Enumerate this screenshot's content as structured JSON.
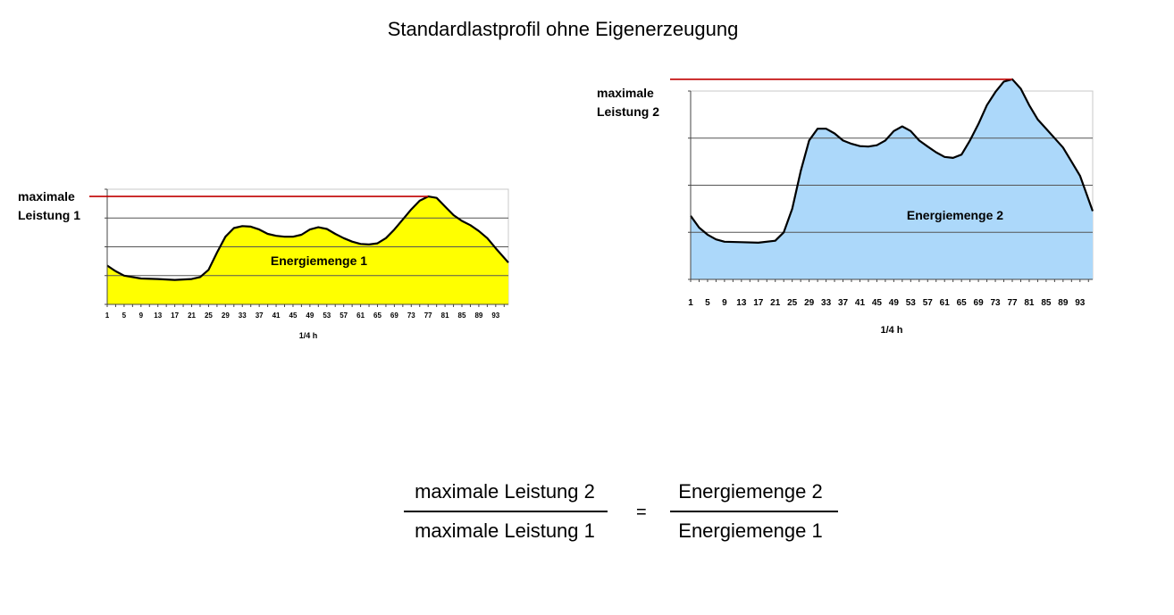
{
  "title": "Standardlastprofil ohne Eigenerzeugung",
  "chart_data": [
    {
      "type": "area",
      "label_max": "maximale\nLeistung 1",
      "area_label": "Energiemenge 1",
      "xlabel": "1/4 h",
      "fill": "#ffff00",
      "line_color": "#000000",
      "max_line_color": "#c00000",
      "x_ticks": [
        "1",
        "5",
        "9",
        "13",
        "17",
        "21",
        "25",
        "29",
        "33",
        "37",
        "41",
        "45",
        "49",
        "53",
        "57",
        "61",
        "65",
        "69",
        "73",
        "77",
        "81",
        "85",
        "89",
        "93"
      ],
      "x_range": [
        1,
        96
      ],
      "y_range": [
        0,
        4
      ],
      "gridlines": [
        1,
        2,
        3,
        4
      ],
      "points": [
        [
          1,
          1.35
        ],
        [
          3,
          1.15
        ],
        [
          5,
          1.0
        ],
        [
          7,
          0.95
        ],
        [
          9,
          0.9
        ],
        [
          13,
          0.88
        ],
        [
          17,
          0.85
        ],
        [
          21,
          0.88
        ],
        [
          23,
          0.95
        ],
        [
          25,
          1.2
        ],
        [
          27,
          1.8
        ],
        [
          29,
          2.35
        ],
        [
          31,
          2.65
        ],
        [
          33,
          2.72
        ],
        [
          35,
          2.7
        ],
        [
          37,
          2.6
        ],
        [
          39,
          2.45
        ],
        [
          41,
          2.38
        ],
        [
          43,
          2.35
        ],
        [
          45,
          2.35
        ],
        [
          47,
          2.42
        ],
        [
          49,
          2.6
        ],
        [
          51,
          2.68
        ],
        [
          53,
          2.62
        ],
        [
          55,
          2.45
        ],
        [
          57,
          2.3
        ],
        [
          59,
          2.18
        ],
        [
          61,
          2.1
        ],
        [
          63,
          2.08
        ],
        [
          65,
          2.12
        ],
        [
          67,
          2.3
        ],
        [
          69,
          2.6
        ],
        [
          71,
          2.95
        ],
        [
          73,
          3.3
        ],
        [
          75,
          3.6
        ],
        [
          77,
          3.75
        ],
        [
          79,
          3.7
        ],
        [
          81,
          3.4
        ],
        [
          83,
          3.1
        ],
        [
          85,
          2.9
        ],
        [
          87,
          2.75
        ],
        [
          89,
          2.55
        ],
        [
          91,
          2.3
        ],
        [
          93,
          1.95
        ],
        [
          96,
          1.45
        ]
      ],
      "max_value": 3.75
    },
    {
      "type": "area",
      "label_max": "maximale\nLeistung 2",
      "area_label": "Energiemenge 2",
      "xlabel": "1/4 h",
      "fill": "#acd8fa",
      "line_color": "#000000",
      "max_line_color": "#c00000",
      "x_ticks": [
        "1",
        "5",
        "9",
        "13",
        "17",
        "21",
        "25",
        "29",
        "33",
        "37",
        "41",
        "45",
        "49",
        "53",
        "57",
        "61",
        "65",
        "69",
        "73",
        "77",
        "81",
        "85",
        "89",
        "93"
      ],
      "x_range": [
        1,
        96
      ],
      "y_range": [
        0,
        4
      ],
      "gridlines": [
        1,
        2,
        3,
        4
      ],
      "points": [
        [
          1,
          1.35
        ],
        [
          3,
          1.1
        ],
        [
          5,
          0.95
        ],
        [
          7,
          0.85
        ],
        [
          9,
          0.8
        ],
        [
          13,
          0.79
        ],
        [
          17,
          0.78
        ],
        [
          21,
          0.82
        ],
        [
          23,
          1.0
        ],
        [
          25,
          1.5
        ],
        [
          27,
          2.3
        ],
        [
          29,
          2.95
        ],
        [
          31,
          3.2
        ],
        [
          33,
          3.2
        ],
        [
          35,
          3.1
        ],
        [
          37,
          2.95
        ],
        [
          39,
          2.88
        ],
        [
          41,
          2.83
        ],
        [
          43,
          2.82
        ],
        [
          45,
          2.85
        ],
        [
          47,
          2.95
        ],
        [
          49,
          3.15
        ],
        [
          51,
          3.25
        ],
        [
          53,
          3.15
        ],
        [
          55,
          2.95
        ],
        [
          57,
          2.82
        ],
        [
          59,
          2.7
        ],
        [
          61,
          2.6
        ],
        [
          63,
          2.58
        ],
        [
          65,
          2.65
        ],
        [
          67,
          2.95
        ],
        [
          69,
          3.3
        ],
        [
          71,
          3.7
        ],
        [
          73,
          3.98
        ],
        [
          75,
          4.2
        ],
        [
          77,
          4.25
        ],
        [
          79,
          4.05
        ],
        [
          81,
          3.7
        ],
        [
          83,
          3.4
        ],
        [
          85,
          3.2
        ],
        [
          87,
          3.0
        ],
        [
          89,
          2.8
        ],
        [
          91,
          2.5
        ],
        [
          93,
          2.2
        ],
        [
          96,
          1.45
        ]
      ],
      "max_value": 4.25
    }
  ],
  "formula": {
    "numerator_left": "maximale Leistung 2",
    "denominator_left": "maximale Leistung 1",
    "equals": "=",
    "numerator_right": "Energiemenge 2",
    "denominator_right": "Energiemenge 1"
  }
}
